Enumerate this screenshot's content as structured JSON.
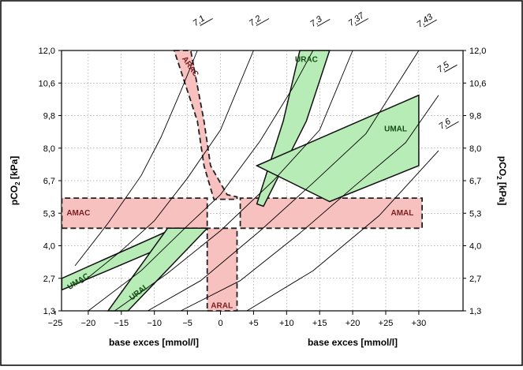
{
  "chart_data": {
    "type": "area",
    "xlabel_left": "base exces [mmol/l]",
    "xlabel_right": "base exces [mmol/l]",
    "ylabel_left": "pCO",
    "ylabel_right": "pCO",
    "ylabel_sub": "2",
    "ylabel_unit": " [kPa]",
    "xlim": [
      -25,
      35
    ],
    "ylim": [
      1.3,
      12.0
    ],
    "x_ticks": [
      {
        "value": -25,
        "label": "−25"
      },
      {
        "value": -20,
        "label": "−20"
      },
      {
        "value": -15,
        "label": "−15"
      },
      {
        "value": -10,
        "label": "−10"
      },
      {
        "value": -5,
        "label": "−5"
      },
      {
        "value": 0,
        "label": "0"
      },
      {
        "value": 5,
        "label": "+5"
      },
      {
        "value": 10,
        "label": "+10"
      },
      {
        "value": 15,
        "label": "+15"
      },
      {
        "value": 20,
        "label": "+20"
      },
      {
        "value": 25,
        "label": "+25"
      },
      {
        "value": 30,
        "label": "+30"
      }
    ],
    "y_ticks": [
      {
        "value": 1.3,
        "label": "1,3"
      },
      {
        "value": 2.7,
        "label": "2,7"
      },
      {
        "value": 4.0,
        "label": "4,0"
      },
      {
        "value": 5.3,
        "label": "5,3"
      },
      {
        "value": 6.7,
        "label": "6,7"
      },
      {
        "value": 8.0,
        "label": "8,0"
      },
      {
        "value": 9.8,
        "label": "9,8"
      },
      {
        "value": 10.6,
        "label": "10,6"
      },
      {
        "value": 12.0,
        "label": "12,0"
      }
    ],
    "ph_isolines": [
      {
        "label": "7,1",
        "points": [
          [
            -22,
            3.2
          ],
          [
            -17,
            4.9
          ],
          [
            -12,
            6.9
          ],
          [
            -9,
            8.6
          ],
          [
            -6,
            10.4
          ],
          [
            -3.5,
            12.0
          ]
        ]
      },
      {
        "label": "7,2",
        "points": [
          [
            -21,
            2.5
          ],
          [
            -15,
            3.8
          ],
          [
            -10,
            5.0
          ],
          [
            -5,
            6.8
          ],
          [
            0,
            9.0
          ],
          [
            5,
            12.0
          ]
        ]
      },
      {
        "label": "7,3",
        "points": [
          [
            -20,
            1.3
          ],
          [
            -12,
            3.0
          ],
          [
            -5,
            4.8
          ],
          [
            0,
            6.1
          ],
          [
            6,
            8.4
          ],
          [
            11,
            10.5
          ],
          [
            14,
            12.0
          ]
        ]
      },
      {
        "label": "7,37",
        "points": [
          [
            -16,
            1.3
          ],
          [
            -8,
            2.9
          ],
          [
            0,
            4.6
          ],
          [
            8,
            6.7
          ],
          [
            15,
            9.0
          ],
          [
            20,
            12.0
          ]
        ]
      },
      {
        "label": "7,43",
        "points": [
          [
            -11,
            1.3
          ],
          [
            -3,
            2.6
          ],
          [
            6,
            4.6
          ],
          [
            14,
            6.6
          ],
          [
            22,
            8.8
          ],
          [
            30,
            12.0
          ]
        ]
      },
      {
        "label": "7,5",
        "points": [
          [
            -6,
            1.3
          ],
          [
            3,
            2.6
          ],
          [
            12,
            4.5
          ],
          [
            20,
            6.4
          ],
          [
            28,
            8.3
          ],
          [
            33,
            10.3
          ]
        ]
      },
      {
        "label": "7,6",
        "points": [
          [
            4,
            1.3
          ],
          [
            14,
            3.0
          ],
          [
            24,
            5.2
          ],
          [
            33,
            7.9
          ]
        ]
      }
    ],
    "metabolic_zones": [
      {
        "name": "AMAC",
        "polygon": [
          [
            -24,
            4.7
          ],
          [
            -2,
            4.7
          ],
          [
            -2,
            5.95
          ],
          [
            -24,
            5.95
          ]
        ]
      },
      {
        "name": "AMAL",
        "polygon": [
          [
            3,
            4.7
          ],
          [
            30.5,
            4.7
          ],
          [
            30.5,
            5.95
          ],
          [
            3,
            5.95
          ]
        ]
      },
      {
        "name": "ARAC",
        "polygon": [
          [
            -7,
            12.0
          ],
          [
            -4.5,
            12.0
          ],
          [
            -2.5,
            9.5
          ],
          [
            -1.5,
            7.3
          ],
          [
            1,
            6.1
          ],
          [
            2.5,
            6.0
          ],
          [
            2.5,
            5.9
          ],
          [
            -1,
            5.9
          ],
          [
            -2.5,
            7.3
          ],
          [
            -3.5,
            9.5
          ]
        ]
      },
      {
        "name": "ARAL",
        "polygon": [
          [
            -2,
            1.3
          ],
          [
            2.5,
            1.3
          ],
          [
            2.5,
            4.7
          ],
          [
            -2,
            4.7
          ]
        ]
      }
    ],
    "compensation_zones": [
      {
        "name": "URAC",
        "polygon": [
          [
            5.5,
            5.7
          ],
          [
            9.5,
            9.5
          ],
          [
            12,
            12.0
          ],
          [
            16.5,
            12.0
          ],
          [
            13,
            9.5
          ],
          [
            6.5,
            5.6
          ]
        ]
      },
      {
        "name": "UMAL",
        "polygon": [
          [
            5.5,
            7.3
          ],
          [
            30,
            10.3
          ],
          [
            30,
            7.3
          ],
          [
            16.5,
            5.8
          ]
        ]
      },
      {
        "name": "UMAC",
        "polygon": [
          [
            -24,
            2.2
          ],
          [
            -24,
            2.7
          ],
          [
            -7,
            4.7
          ],
          [
            -2,
            4.7
          ]
        ]
      },
      {
        "name": "URAL",
        "polygon": [
          [
            -17,
            1.3
          ],
          [
            -14,
            1.3
          ],
          [
            -2,
            4.7
          ],
          [
            -8,
            4.7
          ]
        ]
      }
    ]
  }
}
